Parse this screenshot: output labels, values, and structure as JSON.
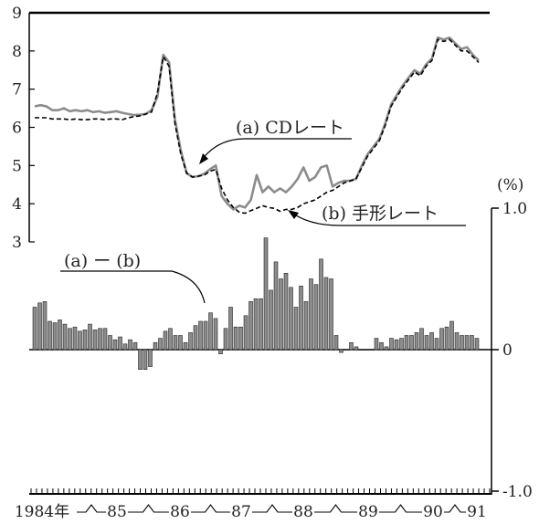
{
  "chart_data": [
    {
      "type": "line",
      "yunit": "",
      "ylim": [
        3,
        9
      ],
      "yticks": [
        "3",
        "4",
        "5",
        "6",
        "7",
        "8",
        "9"
      ],
      "series": [
        {
          "name": "(a) CDレート",
          "color": "#8c8c8c",
          "style": "solid",
          "values": [
            6.55,
            6.58,
            6.55,
            6.45,
            6.45,
            6.5,
            6.42,
            6.45,
            6.42,
            6.45,
            6.4,
            6.42,
            6.38,
            6.4,
            6.42,
            6.38,
            6.35,
            6.32,
            6.33,
            6.35,
            6.45,
            6.8,
            7.9,
            7.7,
            6.2,
            5.4,
            4.8,
            4.7,
            4.72,
            4.78,
            4.9,
            5.0,
            4.2,
            4.0,
            3.85,
            3.95,
            3.9,
            4.1,
            4.75,
            4.3,
            4.45,
            4.3,
            4.4,
            4.3,
            4.45,
            4.65,
            4.95,
            4.6,
            4.7,
            4.95,
            5.0,
            4.45,
            4.55,
            4.6,
            4.6,
            4.65,
            5.0,
            5.3,
            5.5,
            5.7,
            6.1,
            6.6,
            6.85,
            7.1,
            7.3,
            7.5,
            7.4,
            7.65,
            7.8,
            8.35,
            8.3,
            8.35,
            8.2,
            8.05,
            8.1,
            7.9,
            7.75
          ]
        },
        {
          "name": "(b) 手形レート",
          "color": "#000000",
          "style": "dashed",
          "values": [
            6.25,
            6.25,
            6.25,
            6.22,
            6.22,
            6.22,
            6.2,
            6.22,
            6.2,
            6.2,
            6.22,
            6.22,
            6.2,
            6.22,
            6.22,
            6.2,
            6.25,
            6.28,
            6.3,
            6.35,
            6.4,
            6.9,
            7.85,
            7.6,
            6.1,
            5.3,
            4.8,
            4.7,
            4.72,
            4.75,
            4.85,
            4.9,
            4.4,
            4.1,
            3.9,
            3.78,
            3.75,
            3.82,
            3.88,
            3.95,
            3.9,
            3.88,
            3.8,
            3.85,
            3.85,
            3.9,
            4.0,
            4.05,
            4.1,
            4.2,
            4.3,
            4.35,
            4.45,
            4.55,
            4.6,
            4.65,
            4.95,
            5.25,
            5.45,
            5.65,
            6.05,
            6.55,
            6.8,
            7.05,
            7.25,
            7.45,
            7.35,
            7.6,
            7.75,
            8.3,
            8.25,
            8.3,
            8.15,
            8.0,
            8.0,
            7.85,
            7.7
          ]
        }
      ],
      "annotations": [
        "(a) CDレート",
        "(b) 手形レート"
      ]
    },
    {
      "type": "bar",
      "yunit": "(%)",
      "ylim": [
        -1.0,
        1.0
      ],
      "yticks": [
        "1.0",
        "0",
        "-1.0"
      ],
      "color": "#8c8c8c",
      "annotation": "(a) ー (b)",
      "values": [
        0.3,
        0.33,
        0.34,
        0.2,
        0.19,
        0.21,
        0.18,
        0.15,
        0.16,
        0.13,
        0.14,
        0.18,
        0.14,
        0.15,
        0.15,
        0.1,
        0.07,
        0.09,
        0.04,
        0.07,
        0.05,
        -0.14,
        -0.14,
        -0.12,
        0.05,
        0.08,
        0.13,
        0.15,
        0.1,
        0.1,
        0.05,
        0.12,
        0.17,
        0.2,
        0.2,
        0.26,
        0.22,
        -0.03,
        0.15,
        0.3,
        0.16,
        0.16,
        0.24,
        0.34,
        0.36,
        0.36,
        0.79,
        0.42,
        0.62,
        0.5,
        0.54,
        0.44,
        0.3,
        0.45,
        0.34,
        0.5,
        0.46,
        0.64,
        0.51,
        0.5,
        0.1,
        -0.02,
        0.0,
        0.05,
        0.02,
        0.0,
        0.0,
        0.0,
        0.08,
        0.05,
        0.02,
        0.08,
        0.07,
        0.08,
        0.1,
        0.1,
        0.12,
        0.15,
        0.1,
        0.12,
        0.08,
        0.15,
        0.16,
        0.2,
        0.12,
        0.1,
        0.1,
        0.1,
        0.08
      ]
    }
  ],
  "xaxis": {
    "tick_labels": [
      "1984年",
      "85",
      "86",
      "87",
      "88",
      "89",
      "90",
      "91"
    ]
  }
}
